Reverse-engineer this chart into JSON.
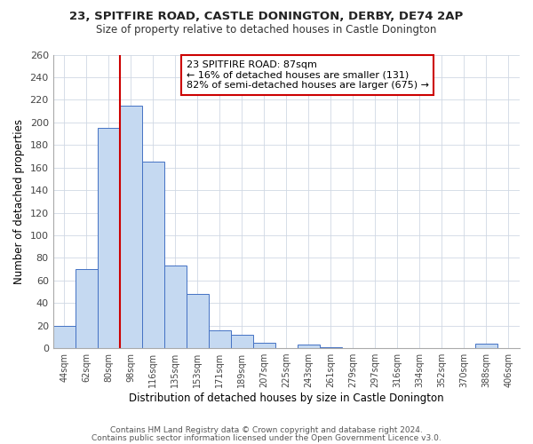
{
  "title1": "23, SPITFIRE ROAD, CASTLE DONINGTON, DERBY, DE74 2AP",
  "title2": "Size of property relative to detached houses in Castle Donington",
  "xlabel": "Distribution of detached houses by size in Castle Donington",
  "ylabel": "Number of detached properties",
  "bar_labels": [
    "44sqm",
    "62sqm",
    "80sqm",
    "98sqm",
    "116sqm",
    "135sqm",
    "153sqm",
    "171sqm",
    "189sqm",
    "207sqm",
    "225sqm",
    "243sqm",
    "261sqm",
    "279sqm",
    "297sqm",
    "316sqm",
    "334sqm",
    "352sqm",
    "370sqm",
    "388sqm",
    "406sqm"
  ],
  "bar_values": [
    20,
    70,
    195,
    215,
    165,
    73,
    48,
    16,
    12,
    5,
    0,
    3,
    1,
    0,
    0,
    0,
    0,
    0,
    0,
    4,
    0
  ],
  "bar_color": "#c5d9f1",
  "bar_edge_color": "#4472c4",
  "vline_color": "#cc0000",
  "ylim": [
    0,
    260
  ],
  "yticks": [
    0,
    20,
    40,
    60,
    80,
    100,
    120,
    140,
    160,
    180,
    200,
    220,
    240,
    260
  ],
  "annotation_title": "23 SPITFIRE ROAD: 87sqm",
  "annotation_line1": "← 16% of detached houses are smaller (131)",
  "annotation_line2": "82% of semi-detached houses are larger (675) →",
  "annotation_box_color": "#ffffff",
  "annotation_box_edge": "#cc0000",
  "footer1": "Contains HM Land Registry data © Crown copyright and database right 2024.",
  "footer2": "Contains public sector information licensed under the Open Government Licence v3.0.",
  "background_color": "#ffffff",
  "grid_color": "#d0d8e4"
}
